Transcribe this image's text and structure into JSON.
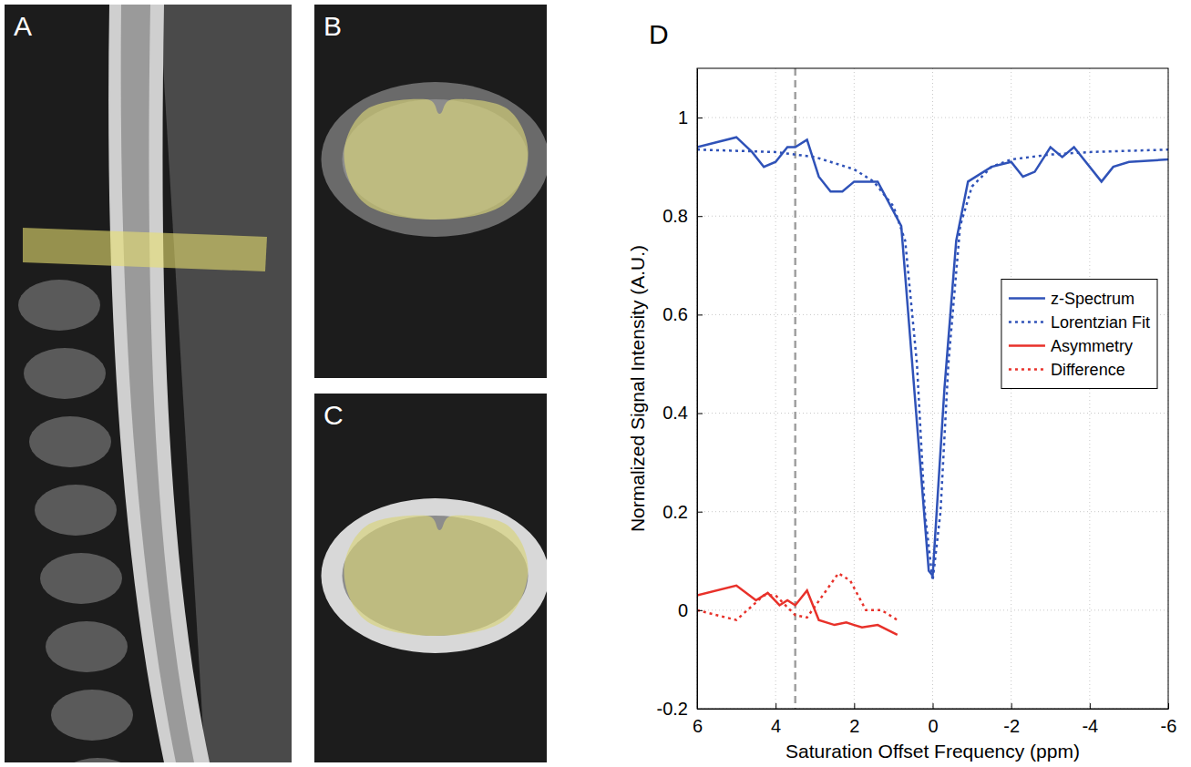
{
  "figure": {
    "panels": [
      "A",
      "B",
      "C"
    ]
  },
  "chart_data": {
    "type": "line",
    "panel_label": "D",
    "x_label": "Saturation Offset Frequency (ppm)",
    "y_label": "Normalized Signal Intensity (A.U.)",
    "xlim": [
      6,
      -6
    ],
    "xticks": [
      6,
      4,
      2,
      0,
      -2,
      -4,
      -6
    ],
    "ylim": [
      -0.2,
      1.1
    ],
    "yticks": [
      -0.2,
      0,
      0.2,
      0.4,
      0.6,
      0.8,
      1
    ],
    "grid": true,
    "legend": "right",
    "reference_line": {
      "x": 3.5
    },
    "series": [
      {
        "name": "z-Spectrum",
        "color": "#2f52b8",
        "line_style": "solid",
        "x": [
          6,
          5,
          4.6,
          4.3,
          4.0,
          3.7,
          3.5,
          3.2,
          2.9,
          2.6,
          2.3,
          2.0,
          1.4,
          0.8,
          0.1,
          0.0,
          -0.3,
          -0.6,
          -0.9,
          -1.5,
          -2.0,
          -2.3,
          -2.6,
          -3.0,
          -3.3,
          -3.6,
          -4.3,
          -4.6,
          -5.0,
          -6.0
        ],
        "values": [
          0.94,
          0.96,
          0.93,
          0.9,
          0.91,
          0.94,
          0.94,
          0.955,
          0.88,
          0.85,
          0.85,
          0.87,
          0.87,
          0.78,
          0.08,
          0.07,
          0.45,
          0.75,
          0.87,
          0.9,
          0.91,
          0.88,
          0.89,
          0.94,
          0.92,
          0.94,
          0.87,
          0.9,
          0.91,
          0.915
        ]
      },
      {
        "name": "Lorentzian Fit",
        "color": "#2f52b8",
        "line_style": "dotted",
        "x": [
          6,
          4,
          3,
          2,
          1.5,
          1,
          0.7,
          0.4,
          0.2,
          0,
          -0.2,
          -0.4,
          -0.7,
          -1,
          -1.5,
          -2,
          -3,
          -4,
          -6
        ],
        "values": [
          0.935,
          0.93,
          0.92,
          0.895,
          0.87,
          0.82,
          0.75,
          0.5,
          0.2,
          0.06,
          0.2,
          0.5,
          0.78,
          0.86,
          0.9,
          0.915,
          0.925,
          0.93,
          0.935
        ]
      },
      {
        "name": "Asymmetry",
        "color": "#e8312a",
        "line_style": "solid",
        "x": [
          6,
          5,
          4.5,
          4.2,
          3.9,
          3.7,
          3.5,
          3.2,
          2.9,
          2.5,
          2.2,
          2.0,
          1.8,
          1.4,
          0.9
        ],
        "values": [
          0.03,
          0.05,
          0.02,
          0.035,
          0.01,
          0.02,
          0.01,
          0.04,
          -0.02,
          -0.03,
          -0.025,
          -0.03,
          -0.035,
          -0.03,
          -0.05
        ]
      },
      {
        "name": "Difference",
        "color": "#e8312a",
        "line_style": "dotted",
        "x": [
          6,
          5,
          4.3,
          4.0,
          3.5,
          3.2,
          2.8,
          2.4,
          2.1,
          1.7,
          1.3,
          0.9
        ],
        "values": [
          0.0,
          -0.02,
          0.03,
          0.03,
          -0.01,
          -0.015,
          0.03,
          0.075,
          0.06,
          0.0,
          0.0,
          -0.02
        ]
      }
    ]
  }
}
